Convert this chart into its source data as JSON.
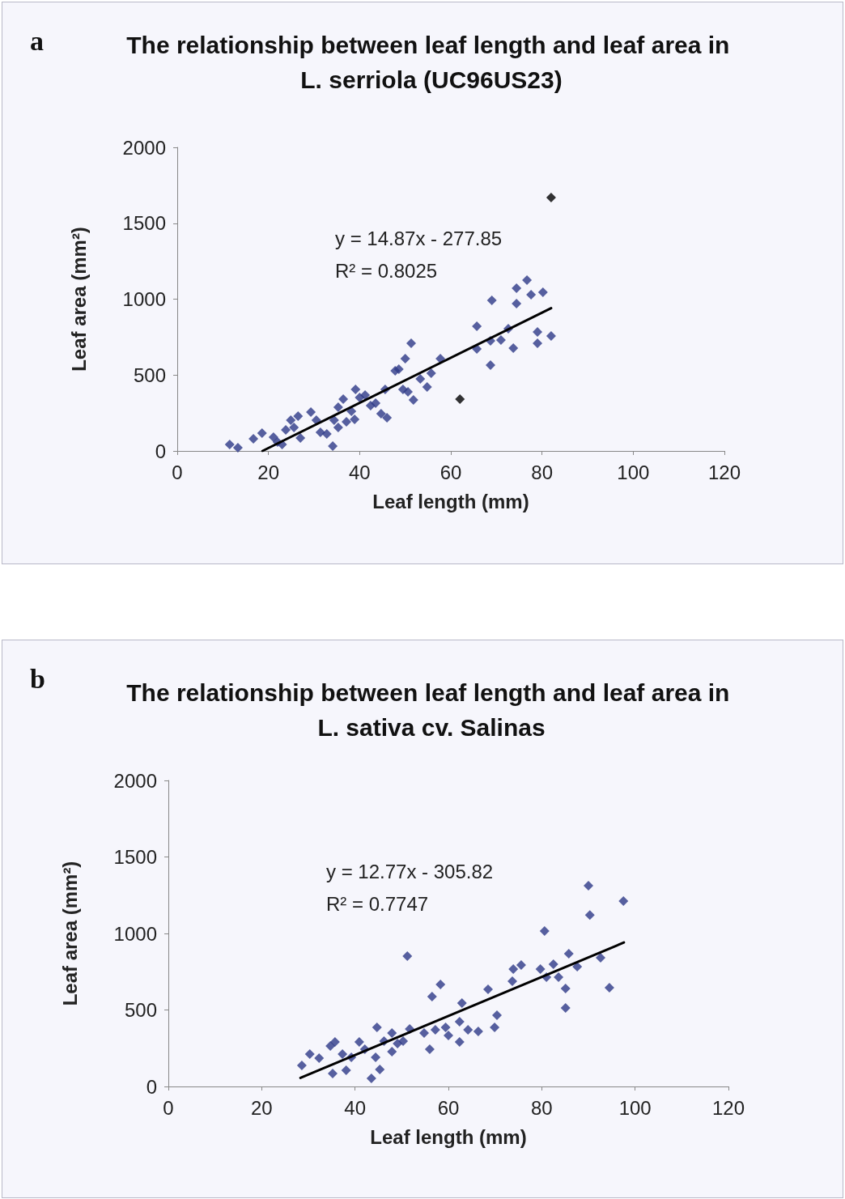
{
  "chart_data": [
    {
      "type": "scatter",
      "title": "The relationship between leaf length and leaf area in L. serriola (UC96US23)",
      "xlabel": "Leaf length (mm)",
      "ylabel": "Leaf area (mm²)",
      "annotations": [
        "a",
        "y = 14.87x - 277.85",
        "R² = 0.8025"
      ],
      "xlim": [
        0,
        120
      ],
      "xticks": [
        0,
        20,
        40,
        60,
        80,
        100,
        120
      ],
      "ylim": [
        0,
        2000
      ],
      "yticks": [
        0,
        500,
        1000,
        1500,
        2000
      ],
      "grid": false,
      "marker": "diamond",
      "series": [
        {
          "color": "#2e3a87",
          "x": [
            11.5,
            13.3,
            16.7,
            18.6,
            21.1,
            22,
            23,
            23.8,
            24.9,
            26.5,
            25.6,
            27,
            29.3,
            30.5,
            31.4,
            32.8,
            34.1,
            34.4,
            35.3,
            36.4,
            35.3,
            37.1,
            38.2,
            39.1,
            40,
            38.9,
            41.2,
            42.4,
            43.5,
            44.7,
            45.6,
            46,
            47.8,
            48.6,
            50,
            51.3,
            49.5,
            50.6,
            51.8,
            53.3,
            54.8,
            55.7,
            57.7,
            65.7,
            65.7,
            68.7,
            68.7,
            76.7,
            74.4,
            77.6,
            80.2,
            69,
            74.4,
            72.6,
            71,
            73.7,
            79,
            82,
            79
          ],
          "values": [
            43,
            21,
            80,
            117,
            91,
            59,
            43,
            139,
            203,
            229,
            155,
            85,
            256,
            203,
            123,
            112,
            32,
            203,
            288,
            341,
            155,
            192,
            261,
            405,
            352,
            208,
            368,
            299,
            315,
            245,
            405,
            219,
            528,
            539,
            608,
            709,
            405,
            389,
            336,
            475,
            421,
            512,
            608,
            821,
            672,
            565,
            725,
            1125,
            1072,
            1029,
            1045,
            992,
            971,
            805,
            731,
            677,
            784,
            757,
            709
          ]
        },
        {
          "color": "#000000",
          "x": [
            62,
            82
          ],
          "values": [
            341,
            1669
          ]
        },
        {
          "type": "line",
          "color": "#000000",
          "marker": "none",
          "line_style": "solid",
          "x": [
            18.7,
            82
          ],
          "values": [
            0,
            941
          ]
        }
      ]
    },
    {
      "type": "scatter",
      "title": "The relationship between leaf length and leaf area in L. sativa cv. Salinas",
      "xlabel": "Leaf length (mm)",
      "ylabel": "Leaf area (mm²)",
      "annotations": [
        "b",
        "y = 12.77x - 305.82",
        "R² = 0.7747"
      ],
      "xlim": [
        0,
        120
      ],
      "xticks": [
        0,
        20,
        40,
        60,
        80,
        100,
        120
      ],
      "ylim": [
        0,
        2000
      ],
      "yticks": [
        0,
        500,
        1000,
        1500,
        2000
      ],
      "grid": false,
      "marker": "diamond",
      "series": [
        {
          "color": "#2e3a87",
          "x": [
            28.6,
            30.3,
            32.3,
            35.2,
            35.7,
            34.7,
            37.3,
            38.1,
            39.2,
            40.9,
            42.1,
            43.5,
            45.3,
            44.7,
            44.4,
            46.2,
            47.9,
            47.9,
            50.3,
            51.7,
            51.2,
            49.1,
            54.8,
            56,
            56.5,
            58.3,
            57.2,
            59.4,
            60,
            62.4,
            62.9,
            62.4,
            64.2,
            66.4,
            68.5,
            69.9,
            70.4,
            73.9,
            73.7,
            75.6,
            79.7,
            90,
            97.5,
            90.3,
            80.6,
            82.5,
            85.8,
            87.6,
            92.6,
            81,
            83.6,
            85.1,
            94.5,
            85.1
          ],
          "values": [
            138,
            212,
            185,
            85,
            291,
            265,
            212,
            106,
            190,
            291,
            243,
            53,
            111,
            386,
            190,
            296,
            349,
            228,
            296,
            376,
            852,
            280,
            349,
            243,
            587,
            667,
            370,
            386,
            333,
            423,
            545,
            291,
            370,
            360,
            635,
            386,
            466,
            767,
            688,
            794,
            767,
            1312,
            1211,
            1121,
            1016,
            799,
            868,
            783,
            841,
            714,
            714,
            640,
            645,
            513
          ]
        },
        {
          "type": "line",
          "color": "#000000",
          "marker": "none",
          "line_style": "solid",
          "x": [
            28.3,
            97.6
          ],
          "values": [
            56,
            941
          ]
        }
      ]
    }
  ]
}
